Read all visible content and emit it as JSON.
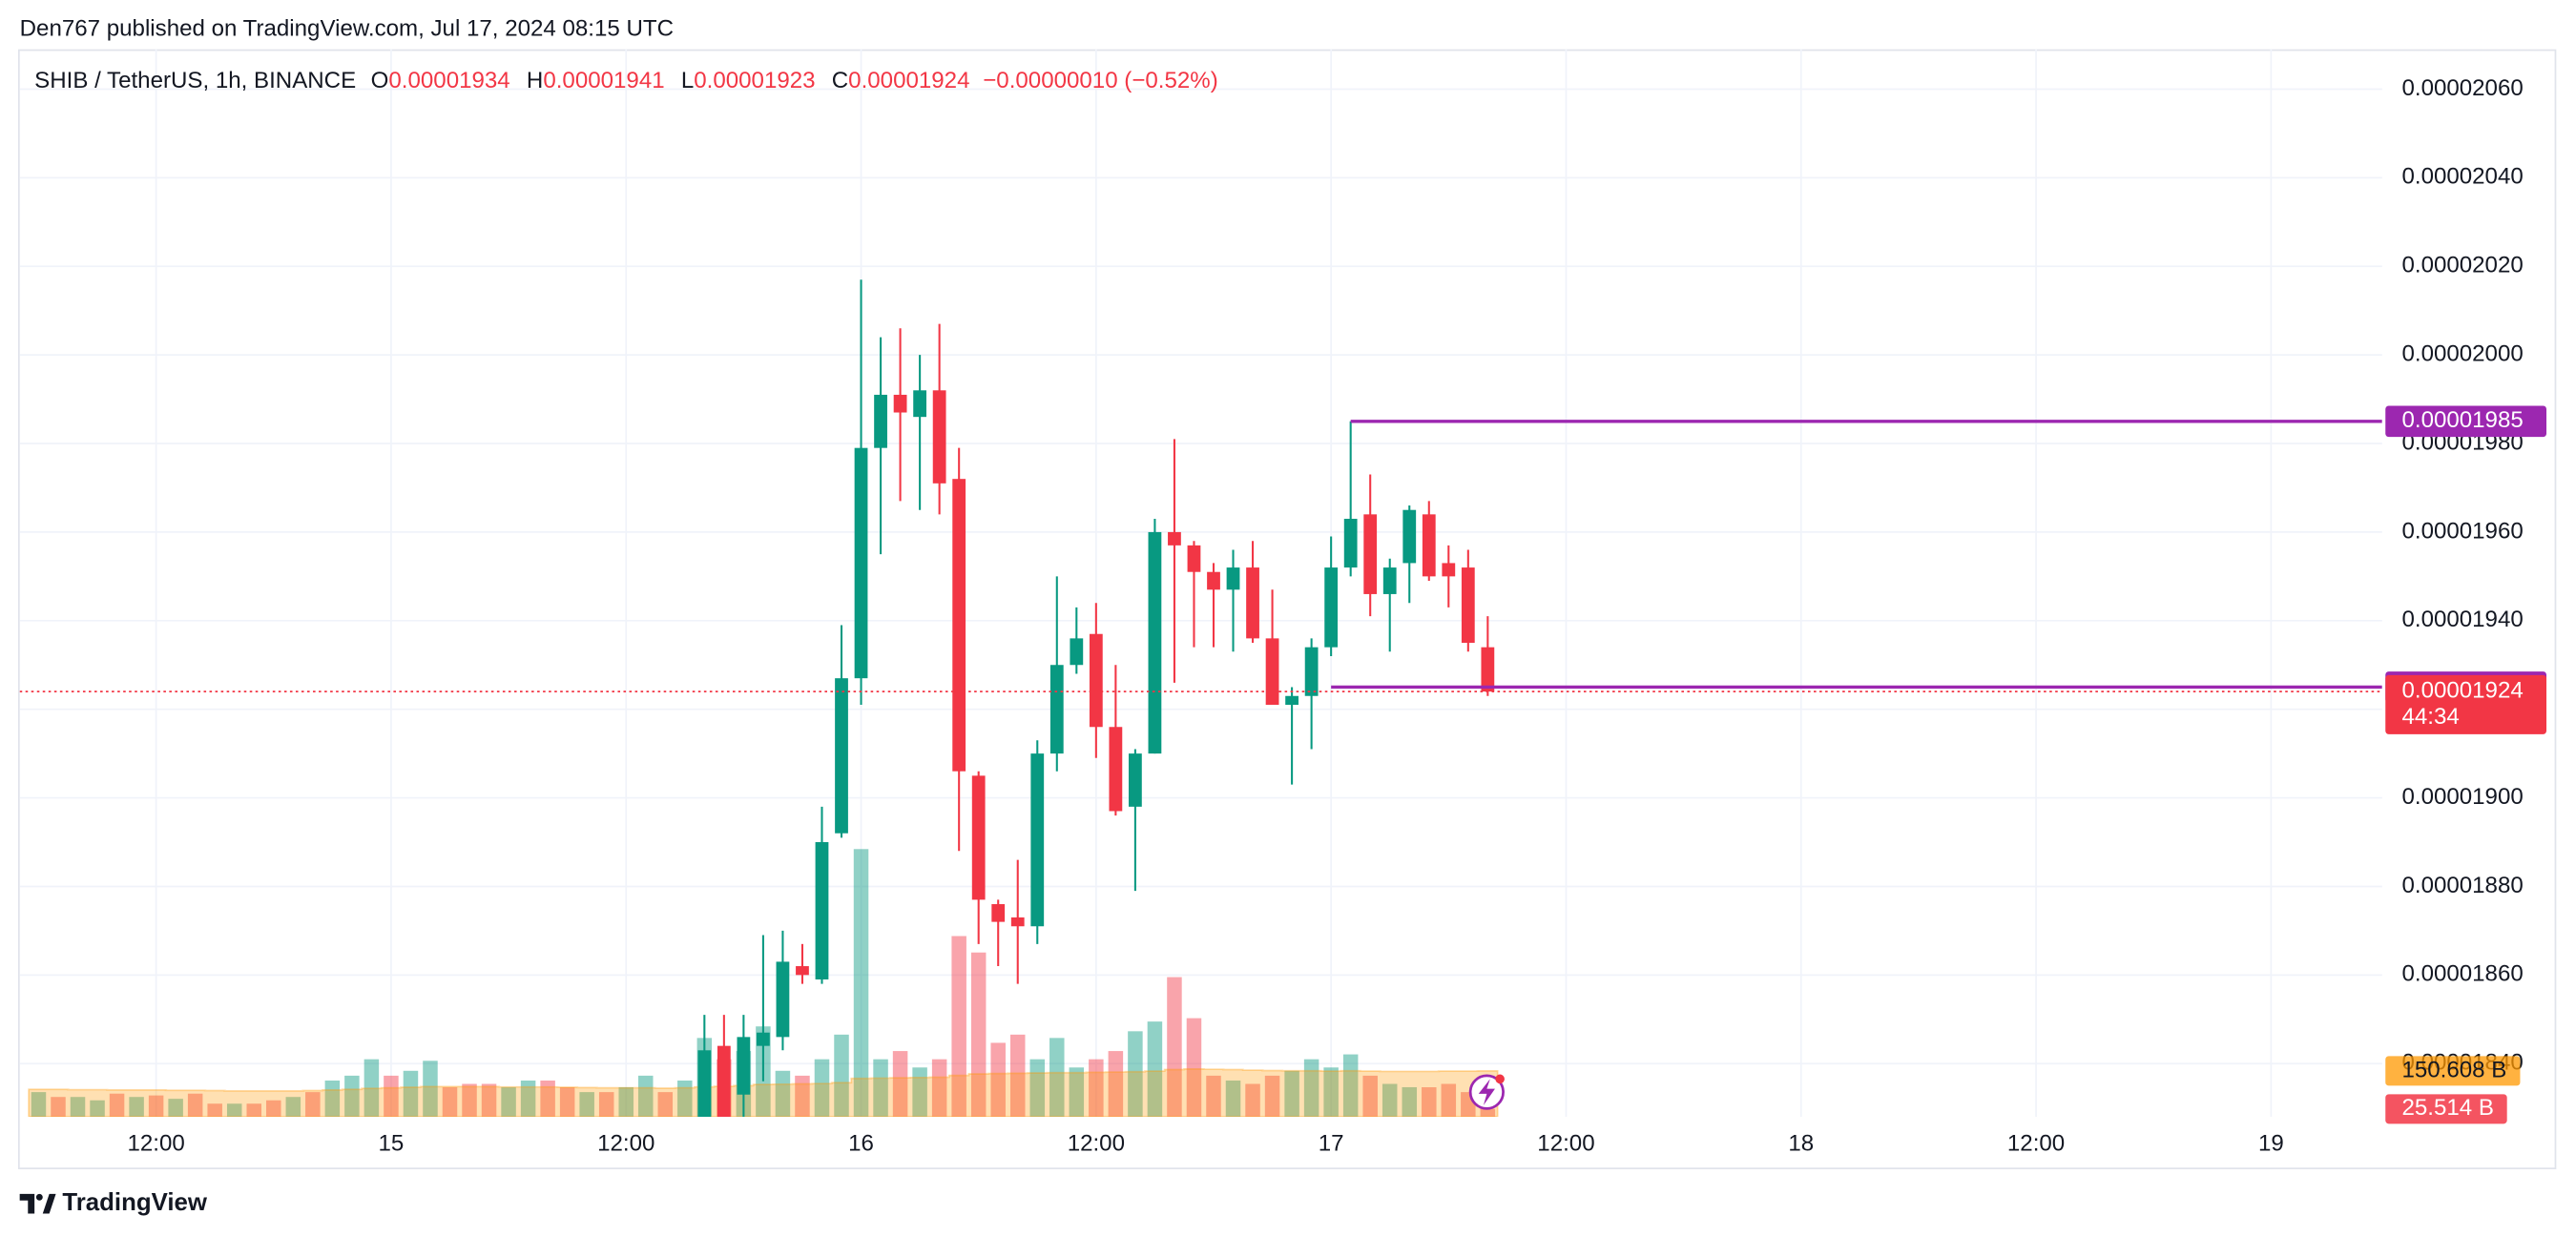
{
  "header": {
    "published": "Den767 published on TradingView.com, Jul 17, 2024 08:15 UTC"
  },
  "footer": {
    "brand": "TradingView"
  },
  "chart_data": {
    "type": "candlestick",
    "legend": {
      "symbol": "SHIB / TetherUS, 1h, BINANCE",
      "ohlc": [
        {
          "key": "O",
          "value": 1.934e-05
        },
        {
          "key": "H",
          "value": 1.941e-05
        },
        {
          "key": "L",
          "value": 1.923e-05
        },
        {
          "key": "C",
          "value": 1.924e-05
        }
      ],
      "change": "−0.00000010 (−0.52%)"
    },
    "categories": [
      null,
      null,
      null,
      null,
      null,
      null,
      "12:00",
      null,
      null,
      null,
      null,
      null,
      null,
      null,
      null,
      null,
      null,
      null,
      "15",
      null,
      null,
      null,
      null,
      null,
      null,
      null,
      null,
      null,
      null,
      null,
      "12:00",
      null,
      null,
      null,
      null,
      null,
      null,
      null,
      null,
      null,
      null,
      null,
      "16",
      null,
      null,
      null,
      null,
      null,
      null,
      null,
      null,
      null,
      null,
      null,
      "12:00",
      null,
      null,
      null,
      null,
      null,
      null,
      null,
      null,
      null,
      null,
      null,
      "17",
      null,
      null,
      null,
      null,
      null,
      null,
      null,
      null,
      null,
      null,
      null,
      "12:00",
      null,
      null,
      null,
      null,
      null,
      null,
      null,
      null,
      null,
      null,
      null,
      "18",
      null,
      null,
      null,
      null,
      null,
      null,
      null,
      null,
      null,
      null,
      null,
      "12:00",
      null,
      null,
      null,
      null,
      null,
      null,
      null,
      null,
      null,
      null,
      null,
      "19",
      null,
      null,
      null,
      null,
      null
    ],
    "open": [
      null,
      null,
      null,
      null,
      null,
      null,
      null,
      null,
      null,
      null,
      null,
      null,
      null,
      null,
      null,
      null,
      null,
      null,
      null,
      null,
      null,
      null,
      null,
      null,
      null,
      null,
      null,
      null,
      null,
      null,
      null,
      null,
      null,
      null,
      1.826e-05,
      1.844e-05,
      1.833e-05,
      1.844e-05,
      1.846e-05,
      1.862e-05,
      1.859e-05,
      1.892e-05,
      1.927e-05,
      1.979e-05,
      1.991e-05,
      1.986e-05,
      1.992e-05,
      1.972e-05,
      1.905e-05,
      1.876e-05,
      1.873e-05,
      1.871e-05,
      1.91e-05,
      1.93e-05,
      1.937e-05,
      1.916e-05,
      1.898e-05,
      1.91e-05,
      1.96e-05,
      1.957e-05,
      1.951e-05,
      1.947e-05,
      1.952e-05,
      1.936e-05,
      1.921e-05,
      1.923e-05,
      1.934e-05,
      1.952e-05,
      1.964e-05,
      1.946e-05,
      1.953e-05,
      1.964e-05,
      1.953e-05,
      1.952e-05,
      1.934e-05,
      null,
      null,
      null,
      null,
      null,
      null,
      null,
      null,
      null,
      null,
      null,
      null,
      null,
      null,
      null,
      null,
      null,
      null,
      null,
      null,
      null,
      null,
      null,
      null,
      null,
      null,
      null,
      null,
      null,
      null,
      null,
      null,
      null,
      null,
      null,
      null,
      null,
      null,
      null,
      null,
      null,
      null,
      null,
      null,
      null
    ],
    "high": [
      null,
      null,
      null,
      null,
      null,
      null,
      null,
      null,
      null,
      null,
      null,
      null,
      null,
      null,
      null,
      null,
      null,
      null,
      null,
      null,
      null,
      null,
      null,
      null,
      null,
      null,
      null,
      null,
      null,
      null,
      null,
      null,
      null,
      null,
      1.851e-05,
      1.851e-05,
      1.851e-05,
      1.869e-05,
      1.87e-05,
      1.867e-05,
      1.898e-05,
      1.939e-05,
      2.017e-05,
      2.004e-05,
      2.006e-05,
      2e-05,
      2.007e-05,
      1.979e-05,
      1.906e-05,
      1.877e-05,
      1.886e-05,
      1.913e-05,
      1.95e-05,
      1.943e-05,
      1.944e-05,
      1.93e-05,
      1.911e-05,
      1.963e-05,
      1.981e-05,
      1.958e-05,
      1.953e-05,
      1.956e-05,
      1.958e-05,
      1.947e-05,
      1.925e-05,
      1.936e-05,
      1.959e-05,
      1.985e-05,
      1.973e-05,
      1.954e-05,
      1.966e-05,
      1.967e-05,
      1.957e-05,
      1.956e-05,
      1.941e-05,
      null,
      null,
      null,
      null,
      null,
      null,
      null,
      null,
      null,
      null,
      null,
      null,
      null,
      null,
      null,
      null,
      null,
      null,
      null,
      null,
      null,
      null,
      null,
      null,
      null,
      null,
      null,
      null,
      null,
      null,
      null,
      null,
      null,
      null,
      null,
      null,
      null,
      null,
      null,
      null,
      null,
      null,
      null,
      null,
      null
    ],
    "low": [
      null,
      null,
      null,
      null,
      null,
      null,
      null,
      null,
      null,
      null,
      null,
      null,
      null,
      null,
      null,
      null,
      null,
      null,
      null,
      null,
      null,
      null,
      null,
      null,
      null,
      null,
      null,
      null,
      null,
      null,
      null,
      null,
      null,
      null,
      1.82e-05,
      1.82e-05,
      1.827e-05,
      1.836e-05,
      1.843e-05,
      1.858e-05,
      1.858e-05,
      1.891e-05,
      1.921e-05,
      1.955e-05,
      1.967e-05,
      1.965e-05,
      1.964e-05,
      1.888e-05,
      1.867e-05,
      1.862e-05,
      1.858e-05,
      1.867e-05,
      1.906e-05,
      1.928e-05,
      1.909e-05,
      1.896e-05,
      1.879e-05,
      1.91e-05,
      1.926e-05,
      1.934e-05,
      1.934e-05,
      1.933e-05,
      1.935e-05,
      1.921e-05,
      1.903e-05,
      1.911e-05,
      1.932e-05,
      1.95e-05,
      1.941e-05,
      1.933e-05,
      1.944e-05,
      1.949e-05,
      1.943e-05,
      1.933e-05,
      1.923e-05,
      null,
      null,
      null,
      null,
      null,
      null,
      null,
      null,
      null,
      null,
      null,
      null,
      null,
      null,
      null,
      null,
      null,
      null,
      null,
      null,
      null,
      null,
      null,
      null,
      null,
      null,
      null,
      null,
      null,
      null,
      null,
      null,
      null,
      null,
      null,
      null,
      null,
      null,
      null,
      null,
      null,
      null,
      null,
      null,
      null
    ],
    "close": [
      null,
      null,
      null,
      null,
      null,
      null,
      null,
      null,
      null,
      null,
      null,
      null,
      null,
      null,
      null,
      null,
      null,
      null,
      null,
      null,
      null,
      null,
      null,
      null,
      null,
      null,
      null,
      null,
      null,
      null,
      null,
      null,
      null,
      null,
      1.843e-05,
      1.826e-05,
      1.846e-05,
      1.847e-05,
      1.863e-05,
      1.86e-05,
      1.89e-05,
      1.927e-05,
      1.979e-05,
      1.991e-05,
      1.987e-05,
      1.992e-05,
      1.971e-05,
      1.906e-05,
      1.877e-05,
      1.872e-05,
      1.871e-05,
      1.91e-05,
      1.93e-05,
      1.936e-05,
      1.916e-05,
      1.897e-05,
      1.91e-05,
      1.96e-05,
      1.957e-05,
      1.951e-05,
      1.947e-05,
      1.952e-05,
      1.936e-05,
      1.921e-05,
      1.923e-05,
      1.934e-05,
      1.952e-05,
      1.963e-05,
      1.946e-05,
      1.952e-05,
      1.965e-05,
      1.95e-05,
      1.95e-05,
      1.935e-05,
      1.924e-05,
      null,
      null,
      null,
      null,
      null,
      null,
      null,
      null,
      null,
      null,
      null,
      null,
      null,
      null,
      null,
      null,
      null,
      null,
      null,
      null,
      null,
      null,
      null,
      null,
      null,
      null,
      null,
      null,
      null,
      null,
      null,
      null,
      null,
      null,
      null,
      null,
      null,
      null,
      null,
      null,
      null,
      null,
      null,
      null,
      null
    ],
    "up_color": "#089981",
    "down_color": "#f23645",
    "volume": [
      81,
      65,
      65,
      54,
      76,
      65,
      70,
      59,
      76,
      43,
      43,
      43,
      54,
      65,
      81,
      119,
      135,
      189,
      135,
      151,
      184,
      97,
      108,
      108,
      97,
      119,
      119,
      97,
      81,
      81,
      97,
      135,
      81,
      119,
      259,
      189,
      216,
      297,
      151,
      135,
      189,
      270,
      880,
      189,
      216,
      162,
      189,
      594,
      540,
      243,
      270,
      189,
      259,
      162,
      189,
      216,
      281,
      313,
      459,
      324,
      135,
      119,
      108,
      135,
      151,
      189,
      162,
      205,
      135,
      108,
      97,
      97,
      108,
      81,
      25.514,
      null,
      null,
      null,
      null,
      null,
      null,
      null,
      null,
      null,
      null,
      null,
      null,
      null,
      null,
      null,
      null,
      null,
      null,
      null,
      null,
      null,
      null,
      null,
      null,
      null,
      null,
      null,
      null,
      null,
      null,
      null,
      null,
      null,
      null,
      null,
      null,
      null,
      null,
      null,
      null,
      null,
      null,
      null,
      null,
      null
    ],
    "volume_up": [
      true,
      false,
      true,
      true,
      false,
      true,
      false,
      true,
      false,
      false,
      true,
      false,
      false,
      true,
      false,
      true,
      true,
      true,
      false,
      true,
      true,
      false,
      false,
      false,
      true,
      true,
      false,
      false,
      true,
      false,
      true,
      true,
      false,
      true,
      true,
      false,
      true,
      true,
      true,
      false,
      true,
      true,
      true,
      true,
      false,
      true,
      false,
      false,
      false,
      false,
      false,
      true,
      true,
      true,
      false,
      false,
      true,
      true,
      false,
      false,
      false,
      true,
      false,
      false,
      true,
      true,
      true,
      true,
      false,
      true,
      true,
      false,
      false,
      false,
      false,
      null,
      null,
      null,
      null,
      null,
      null,
      null,
      null,
      null,
      null,
      null,
      null,
      null,
      null,
      null,
      null,
      null,
      null,
      null,
      null,
      null,
      null,
      null,
      null,
      null,
      null,
      null,
      null,
      null,
      null,
      null,
      null,
      null,
      null,
      null,
      null,
      null,
      null,
      null,
      null,
      null,
      null,
      null,
      null,
      null
    ],
    "volume_ma": [
      90,
      90,
      89,
      89,
      88,
      88,
      88,
      87,
      87,
      86,
      85,
      85,
      85,
      85,
      86,
      88,
      90,
      93,
      95,
      97,
      99,
      99,
      99,
      99,
      98,
      98,
      98,
      97,
      96,
      95,
      95,
      95,
      94,
      95,
      98,
      100,
      102,
      106,
      107,
      108,
      109,
      112,
      126,
      127,
      128,
      129,
      130,
      136,
      141,
      142,
      143,
      144,
      145,
      145,
      146,
      147,
      148,
      150,
      155,
      157,
      156,
      155,
      153,
      152,
      151,
      151,
      150,
      151,
      150,
      149,
      149,
      149,
      150,
      150,
      150.608,
      null,
      null,
      null,
      null,
      null,
      null,
      null,
      null,
      null,
      null,
      null,
      null,
      null,
      null,
      null,
      null,
      null,
      null,
      null,
      null,
      null,
      null,
      null,
      null,
      null,
      null,
      null,
      null,
      null,
      null,
      null,
      null,
      null,
      null,
      null,
      null,
      null,
      null,
      null,
      null,
      null,
      null,
      null,
      null,
      null
    ],
    "volume_ma_color": "#ff9800",
    "volume_lim": [
      0,
      900
    ],
    "volume_last": {
      "value": 25.514,
      "label": "25.514 B"
    },
    "volume_ma_last": {
      "value": 150.608,
      "label": "150.608 B"
    },
    "ylim": [
      1.828e-05,
      2.069e-05
    ],
    "yticks": [
      {
        "value": 1.84e-05,
        "label": "0.00001840"
      },
      {
        "value": 1.86e-05,
        "label": "0.00001860"
      },
      {
        "value": 1.88e-05,
        "label": "0.00001880"
      },
      {
        "value": 1.9e-05,
        "label": "0.00001900"
      },
      {
        "value": 1.92e-05,
        "label": "0.00001920"
      },
      {
        "value": 1.94e-05,
        "label": "0.00001940"
      },
      {
        "value": 1.96e-05,
        "label": "0.00001960"
      },
      {
        "value": 1.98e-05,
        "label": "0.00001980"
      },
      {
        "value": 2e-05,
        "label": "0.00002000"
      },
      {
        "value": 2.02e-05,
        "label": "0.00002020"
      },
      {
        "value": 2.04e-05,
        "label": "0.00002040"
      },
      {
        "value": 2.06e-05,
        "label": "0.00002060"
      }
    ],
    "grid": true,
    "lines": [
      {
        "value": 1.985e-05,
        "from": 67,
        "color": "#9c27b0"
      },
      {
        "value": 1.925e-05,
        "from": 66,
        "color": "#9c27b0"
      }
    ],
    "price": {
      "value": 1.924e-05,
      "countdown": "44:34",
      "color": "#f23645"
    }
  }
}
